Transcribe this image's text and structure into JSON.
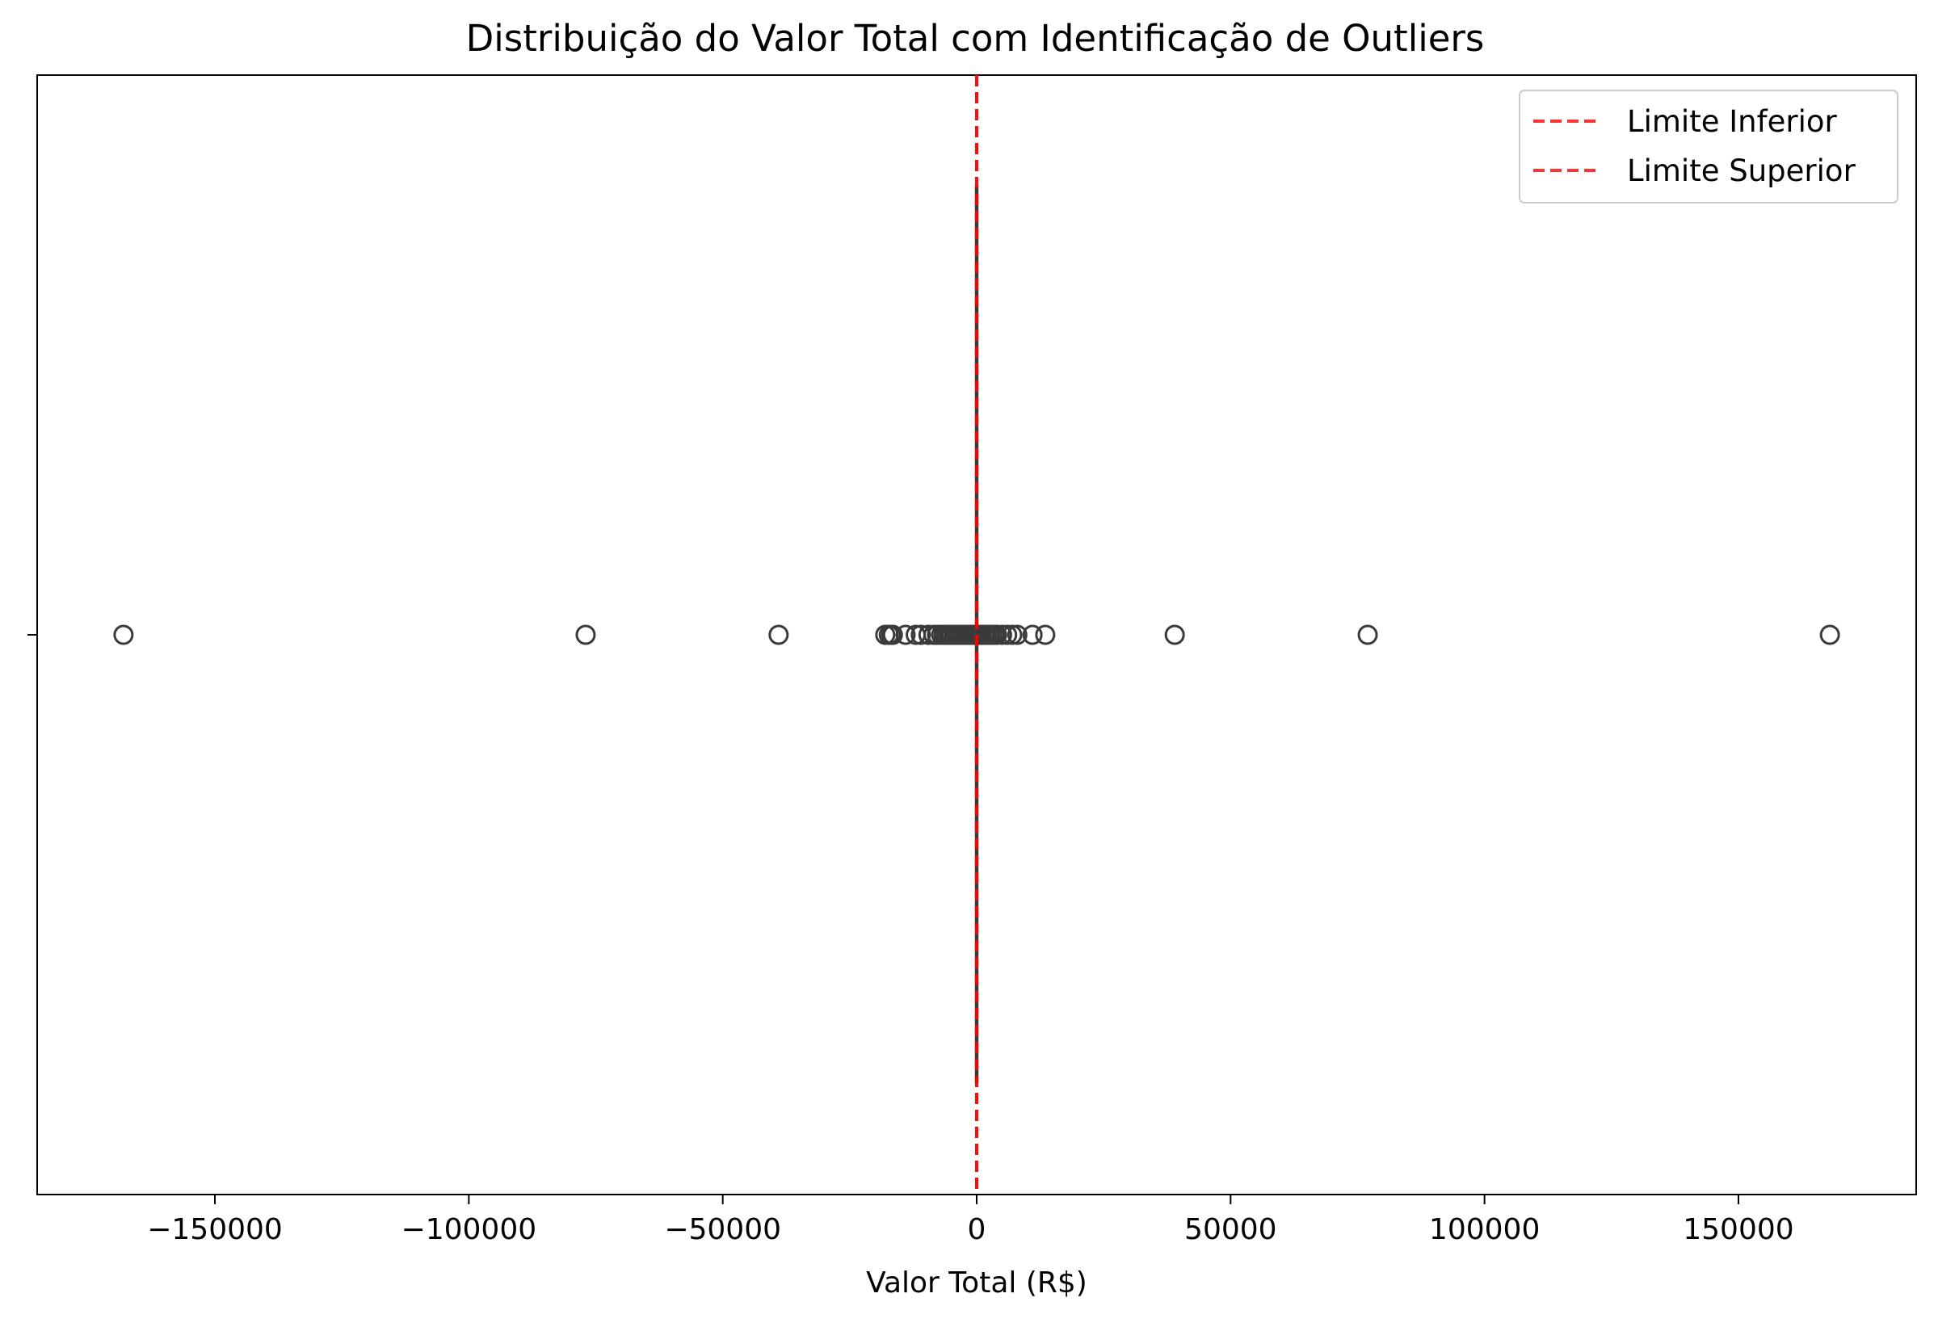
{
  "chart_data": {
    "type": "boxplot",
    "orientation": "horizontal",
    "title": "Distribuição do Valor Total com Identificação de Outliers",
    "xlabel": "Valor Total (R$)",
    "ylabel": "",
    "xlim": [
      -185000,
      185000
    ],
    "xticks": [
      -150000,
      -100000,
      -50000,
      0,
      50000,
      100000,
      150000
    ],
    "xtick_labels": [
      "−150000",
      "−100000",
      "−50000",
      "0",
      "50000",
      "100000",
      "150000"
    ],
    "grid": false,
    "box": {
      "q1": 0,
      "median": 0,
      "q3": 0,
      "whisker_low": 0,
      "whisker_high": 0
    },
    "outliers": [
      -168000,
      -77000,
      -39000,
      -18000,
      -17300,
      -16800,
      -16500,
      -14000,
      -12000,
      -11000,
      -9500,
      -8500,
      -7800,
      -7000,
      -6500,
      -6000,
      -5500,
      -5000,
      -4500,
      -4000,
      -3500,
      -3000,
      -2500,
      -2000,
      -1500,
      -1000,
      -600,
      -300,
      300,
      600,
      1000,
      1500,
      2000,
      2500,
      3000,
      3500,
      4000,
      5000,
      6000,
      7000,
      8000,
      11000,
      13500,
      39000,
      77000,
      168000
    ],
    "reference_lines": [
      {
        "name": "Limite Inferior",
        "value": 0,
        "color": "#ff0000",
        "style": "dashed"
      },
      {
        "name": "Limite Superior",
        "value": 0,
        "color": "#ff0000",
        "style": "dashed"
      }
    ],
    "legend": {
      "placement": "top-right",
      "entries": [
        "Limite Inferior",
        "Limite Superior"
      ]
    },
    "colors": {
      "marker_edge": "#3a3a3a",
      "reference": "#ff0000",
      "axes": "#000000"
    }
  }
}
